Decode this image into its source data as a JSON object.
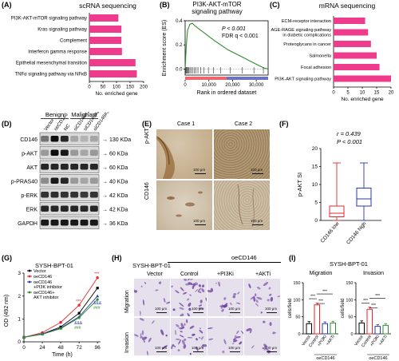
{
  "panels": {
    "A": {
      "label": "(A)",
      "title": "scRNA sequencing",
      "xlabel": "No. enriched gene"
    },
    "B": {
      "label": "(B)",
      "title_line1": "PI3K-AKT-mTOR",
      "title_line2": "signaling pathway",
      "ylabel": "Enrichment score (ES)",
      "xlabel": "Rank in ordered dataset",
      "stat_p": "P < 0.001",
      "stat_fdr": "FDR q < 0.001"
    },
    "C": {
      "label": "(C)",
      "title": "mRNA sequencing",
      "xlabel": "No. enriched gene"
    },
    "D": {
      "label": "(D)",
      "group1": "Benign",
      "group2": "Malignant",
      "lanes": [
        "Vector",
        "oeCD146",
        "NC",
        "siCD146#1",
        "siCD146#2",
        "siCD146#3"
      ],
      "rows": [
        {
          "protein": "CD146",
          "size": "130 KDa"
        },
        {
          "protein": "p-AKT",
          "size": "60 KDa"
        },
        {
          "protein": "AKT",
          "size": "60 KDa"
        },
        {
          "protein": "p-PRAS40",
          "size": "40 KDa"
        },
        {
          "protein": "p-ERK",
          "size": "42 KDa"
        },
        {
          "protein": "ERK",
          "size": "42 KDa"
        },
        {
          "protein": "GAPDH",
          "size": "36 KDa"
        }
      ]
    },
    "E": {
      "label": "(E)",
      "col1": "Case 1",
      "col2": "Case 2",
      "row1": "p-AKT",
      "row2": "CD146",
      "scale": "100 μm"
    },
    "F": {
      "label": "(F)",
      "stat_r": "r = 0.439",
      "stat_p": "P < 0.001",
      "ylabel": "p-AKT SI",
      "cat1": "CD146 low",
      "cat2": "CD146 high"
    },
    "G": {
      "label": "(G)",
      "title": "SYSH-BPT-01",
      "ylabel": "OD (492 nm)",
      "xlabel": "Time (h)",
      "legend": [
        "Vector",
        "oeCD146",
        "oeCD146\n+PI3K inhibitor",
        "oeCD146+\nAKT inhibitor"
      ],
      "legend_l1": "Vector",
      "legend_l2": "oeCD146",
      "legend_l3a": "oeCD146",
      "legend_l3b": "+PI3K inhibitor",
      "legend_l4a": "oeCD146+",
      "legend_l4b": "AKT inhibitor",
      "sig1": "***",
      "sig2": "***",
      "sig3": "&&&",
      "sig4": "###",
      "sig5": "&&&",
      "sig6": "###"
    },
    "H": {
      "label": "(H)",
      "cellline": "SYSH-BPT-01",
      "group": "oeCD146",
      "cols": [
        "Vector",
        "Control",
        "+PI3Ki",
        "+AKTi"
      ],
      "rows": [
        "Migration",
        "Invasion"
      ],
      "scale": "100 μm"
    },
    "I": {
      "label": "(I)",
      "title": "SYSH-BPT-01",
      "sub1": "Migration",
      "sub2": "Invasion",
      "ylabel": "cells/field",
      "group": "oeCD146",
      "sig": "***"
    }
  },
  "chart_data": [
    {
      "id": "A",
      "type": "bar",
      "orientation": "horizontal",
      "title": "scRNA sequencing",
      "xlabel": "No. enriched gene",
      "categories": [
        "PI3K-AKT-mTOR signaling pathway",
        "Kras signaling pathway",
        "Complement",
        "Interferon gamma response",
        "Epithelial mesenchymal transition",
        "TNFα signaling pathway via NFκB"
      ],
      "values": [
        107,
        118,
        118,
        120,
        170,
        175
      ],
      "xlim": [
        0,
        200
      ],
      "xticks": [
        0,
        50,
        100,
        150,
        200
      ],
      "color": "#ee3b8c"
    },
    {
      "id": "B",
      "type": "line",
      "title": "PI3K-AKT-mTOR signaling pathway",
      "xlabel": "Rank in ordered dataset",
      "ylabel": "Enrichment score (ES)",
      "xlim": [
        0,
        35000
      ],
      "ylim": [
        -0.05,
        0.4
      ],
      "xticks": [
        0,
        10000,
        20000,
        30000
      ],
      "yticks": [
        0.0,
        0.2,
        0.4
      ],
      "x": [
        0,
        500,
        1000,
        2000,
        3000,
        4000,
        6000,
        8000,
        10000,
        12000,
        15000,
        18000,
        21000,
        24000,
        27000,
        30000,
        33000,
        35000
      ],
      "y": [
        0,
        0.2,
        0.32,
        0.37,
        0.38,
        0.36,
        0.33,
        0.3,
        0.27,
        0.24,
        0.2,
        0.16,
        0.13,
        0.1,
        0.07,
        0.04,
        0.01,
        0
      ],
      "color": "#2e8b2e"
    },
    {
      "id": "C",
      "type": "bar",
      "orientation": "horizontal",
      "title": "mRNA sequencing",
      "xlabel": "No. enriched gene",
      "categories": [
        "ECM-receptor interaction",
        "AGE-RAGE signaling pathway in diabetic complications",
        "Proteoglycans in cancer",
        "Salmonella",
        "Focal adhesion",
        "PI3K-AKT signaling pathway"
      ],
      "values": [
        11,
        12,
        13,
        15,
        16,
        20
      ],
      "xlim": [
        0,
        20
      ],
      "xticks": [
        0,
        5,
        10,
        15,
        20
      ],
      "color": "#ee3b8c"
    },
    {
      "id": "F",
      "type": "box",
      "ylabel": "p-AKT SI",
      "ylim": [
        0,
        20
      ],
      "yticks": [
        0,
        5,
        10,
        15,
        20
      ],
      "series": [
        {
          "name": "CD146 low",
          "min": 0,
          "q1": 1,
          "median": 2,
          "q3": 4,
          "max": 16,
          "color": "#e8262b"
        },
        {
          "name": "CD146 high",
          "min": 0,
          "q1": 4,
          "median": 6,
          "q3": 9,
          "max": 16,
          "color": "#2b3aa6"
        }
      ]
    },
    {
      "id": "G",
      "type": "line",
      "title": "SYSH-BPT-01",
      "xlabel": "Time (h)",
      "ylabel": "OD (492 nm)",
      "x": [
        0,
        24,
        48,
        72,
        96
      ],
      "xlim": [
        0,
        100
      ],
      "ylim": [
        0,
        3
      ],
      "xticks": [
        0,
        24,
        48,
        72,
        96
      ],
      "yticks": [
        0,
        1,
        2,
        3
      ],
      "series": [
        {
          "name": "Vector",
          "values": [
            0.2,
            0.35,
            0.65,
            1.25,
            2.35
          ],
          "color": "#000000"
        },
        {
          "name": "oeCD146",
          "values": [
            0.2,
            0.4,
            0.85,
            1.6,
            2.8
          ],
          "color": "#e8262b"
        },
        {
          "name": "oeCD146 +PI3K inhibitor",
          "values": [
            0.2,
            0.35,
            0.6,
            1.1,
            2.0
          ],
          "color": "#2b3aa6"
        },
        {
          "name": "oeCD146+ AKT inhibitor",
          "values": [
            0.2,
            0.33,
            0.58,
            1.05,
            1.85
          ],
          "color": "#2e8b2e"
        }
      ]
    },
    {
      "id": "I-migration",
      "type": "bar",
      "title": "Migration",
      "ylabel": "cells/field",
      "categories": [
        "Vector",
        "Control",
        "+PI3Ki",
        "+AKTi"
      ],
      "values": [
        30,
        85,
        30,
        32
      ],
      "errors": [
        6,
        5,
        5,
        5
      ],
      "ylim": [
        0,
        150
      ],
      "yticks": [
        0,
        50,
        100,
        150
      ],
      "colors": [
        "#000000",
        "#e8262b",
        "#2b3aa6",
        "#2e8b2e"
      ]
    },
    {
      "id": "I-invasion",
      "type": "bar",
      "title": "Invasion",
      "ylabel": "cells/field",
      "categories": [
        "Vector",
        "Control",
        "+PI3Ki",
        "+AKTi"
      ],
      "values": [
        32,
        72,
        22,
        25
      ],
      "errors": [
        6,
        7,
        5,
        5
      ],
      "ylim": [
        0,
        150
      ],
      "yticks": [
        0,
        50,
        100,
        150
      ],
      "colors": [
        "#000000",
        "#e8262b",
        "#2b3aa6",
        "#2e8b2e"
      ]
    }
  ]
}
